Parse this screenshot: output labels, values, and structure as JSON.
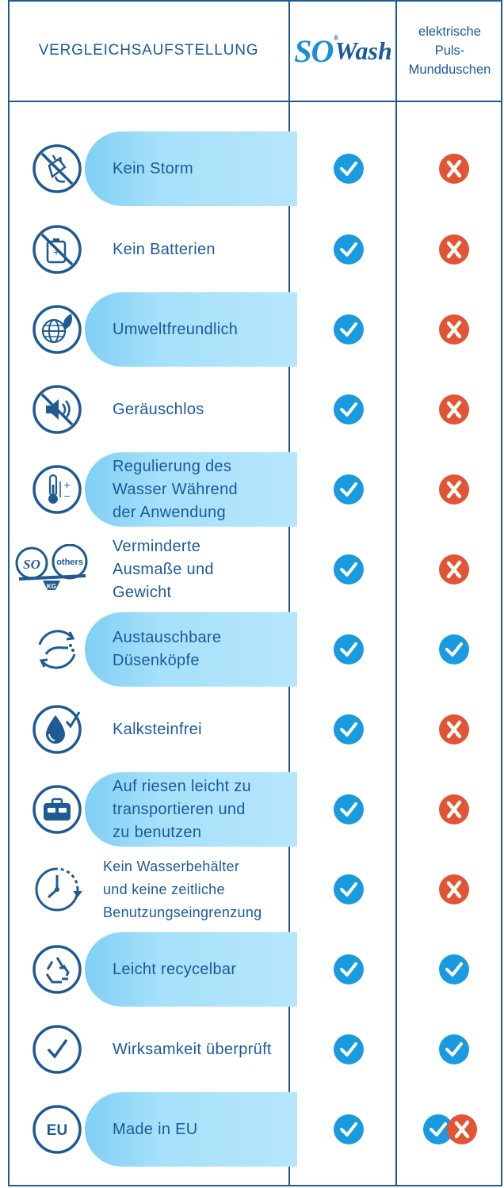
{
  "header": {
    "title": "VERGLEICHSAUFSTELLUNG",
    "logo": {
      "so": "SO",
      "wash": "Wash",
      "registered": "®"
    },
    "competitor_lines": [
      "elektrische",
      "Puls-",
      "Mundduschen"
    ]
  },
  "colors": {
    "border": "#1f5b93",
    "text": "#1a5a9c",
    "band": "#a6e0fa",
    "check": "#1a9be0",
    "cross": "#e25433"
  },
  "rows": [
    {
      "lines": [
        "Kein  Storm"
      ],
      "icon": "no-plug-icon",
      "band": true,
      "sowash": "check",
      "competitor": "cross"
    },
    {
      "lines": [
        "Kein  Batterien"
      ],
      "icon": "no-battery-icon",
      "band": false,
      "sowash": "check",
      "competitor": "cross"
    },
    {
      "lines": [
        "Umweltfreundlich"
      ],
      "icon": "globe-leaf-icon",
      "band": true,
      "sowash": "check",
      "competitor": "cross"
    },
    {
      "lines": [
        "Geräuschlos"
      ],
      "icon": "mute-speaker-icon",
      "band": false,
      "sowash": "check",
      "competitor": "cross"
    },
    {
      "lines": [
        "Regulierung  des",
        "Wasser  Während",
        "der  Anwendung"
      ],
      "icon": "thermometer-icon",
      "band": true,
      "sowash": "check",
      "competitor": "cross"
    },
    {
      "lines": [
        "Verminderte",
        "Ausmaße  und",
        "Gewicht"
      ],
      "icon": "scale-icon",
      "band": false,
      "sowash": "check",
      "competitor": "cross",
      "scale_labels": {
        "left": "SO",
        "right": "others",
        "base": "KG"
      }
    },
    {
      "lines": [
        "Austauschbare",
        "Düsenköpfe"
      ],
      "icon": "nozzle-exchange-icon",
      "band": true,
      "sowash": "check",
      "competitor": "check"
    },
    {
      "lines": [
        "Kalksteinfrei"
      ],
      "icon": "water-drop-check-icon",
      "band": false,
      "sowash": "check",
      "competitor": "cross"
    },
    {
      "lines": [
        "Auf  riesen  leicht  zu",
        "transportieren  und",
        "zu  benutzen"
      ],
      "icon": "travel-bag-icon",
      "band": true,
      "sowash": "check",
      "competitor": "cross"
    },
    {
      "lines": [
        "Kein  Wasserbehälter",
        "und  keine  zeitliche",
        "Benutzungseingrenzung"
      ],
      "icon": "clock-icon",
      "band": false,
      "sowash": "check",
      "competitor": "cross"
    },
    {
      "lines": [
        "Leicht  recycelbar"
      ],
      "icon": "recycle-icon",
      "band": true,
      "sowash": "check",
      "competitor": "check"
    },
    {
      "lines": [
        "Wirksamkeit  überprüft"
      ],
      "icon": "checkmark-circle-icon",
      "band": false,
      "sowash": "check",
      "competitor": "check"
    },
    {
      "lines": [
        "Made  in  EU"
      ],
      "icon": "eu-icon",
      "band": true,
      "sowash": "check",
      "competitor": "check-cross",
      "eu_text": "EU"
    }
  ]
}
